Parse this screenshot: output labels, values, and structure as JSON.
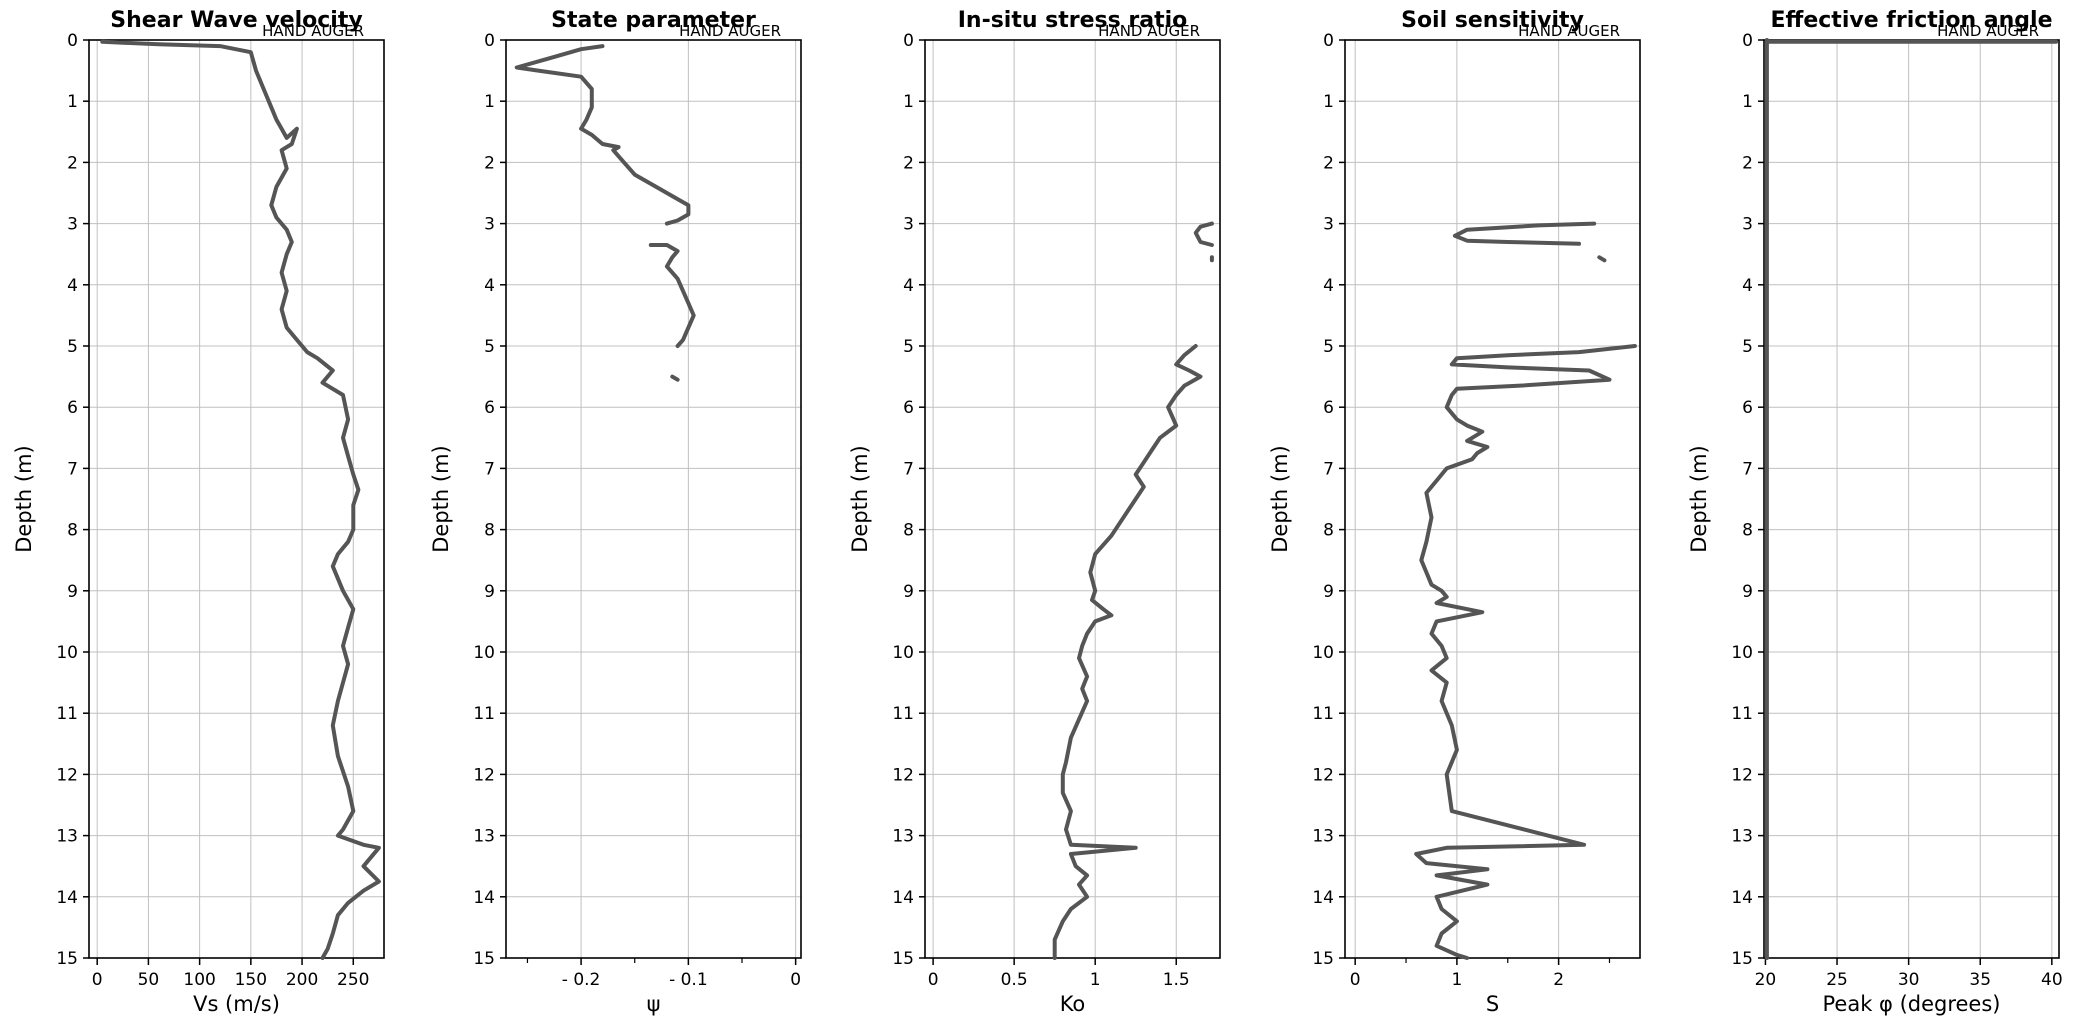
{
  "chart_data": [
    {
      "type": "line",
      "title": "Shear Wave velocity",
      "annotation": "HAND AUGER",
      "xlabel": "Vs (m/s)",
      "ylabel": "Depth (m)",
      "xlim": [
        -8,
        280
      ],
      "ylim": [
        15,
        0
      ],
      "xticks": [
        0,
        50,
        100,
        150,
        200,
        250
      ],
      "yticks": [
        0,
        1,
        2,
        3,
        4,
        5,
        6,
        7,
        8,
        9,
        10,
        11,
        12,
        13,
        14,
        15
      ],
      "grid": true,
      "segments": [
        {
          "x": [
            5,
            60,
            120,
            150,
            155,
            165,
            170,
            175,
            180,
            185,
            195,
            190,
            180,
            185,
            175,
            170,
            175,
            185,
            190,
            185,
            180,
            185,
            180,
            185,
            195,
            200,
            205,
            215,
            230,
            220,
            240,
            245,
            240,
            245,
            250,
            255,
            250,
            250,
            245,
            235,
            230,
            240,
            250,
            245,
            240,
            245,
            240,
            235,
            230,
            235,
            245,
            250,
            240,
            235,
            260,
            275,
            260,
            275,
            260,
            245,
            235,
            230,
            225,
            220
          ],
          "y": [
            0.03,
            0.07,
            0.1,
            0.2,
            0.5,
            0.9,
            1.1,
            1.3,
            1.45,
            1.6,
            1.45,
            1.7,
            1.8,
            2.1,
            2.4,
            2.7,
            2.9,
            3.1,
            3.3,
            3.5,
            3.8,
            4.1,
            4.4,
            4.7,
            4.9,
            5.0,
            5.1,
            5.2,
            5.4,
            5.6,
            5.8,
            6.2,
            6.5,
            6.8,
            7.1,
            7.35,
            7.6,
            8.0,
            8.2,
            8.4,
            8.6,
            9.0,
            9.3,
            9.6,
            9.9,
            10.2,
            10.5,
            10.8,
            11.2,
            11.7,
            12.2,
            12.6,
            12.9,
            13.0,
            13.15,
            13.2,
            13.5,
            13.75,
            13.9,
            14.1,
            14.3,
            14.6,
            14.85,
            15.0
          ]
        }
      ]
    },
    {
      "type": "line",
      "title": "State parameter",
      "annotation": "HAND AUGER",
      "xlabel": "ψ",
      "ylabel": "Depth (m)",
      "xlim": [
        -0.27,
        0.005
      ],
      "ylim": [
        15,
        0
      ],
      "xticks": [
        -0.2,
        -0.1,
        0
      ],
      "xticklabels": [
        "- 0.2",
        "- 0.1",
        "0"
      ],
      "minor_xticks": [
        -0.25,
        -0.15,
        -0.05
      ],
      "yticks": [
        0,
        1,
        2,
        3,
        4,
        5,
        6,
        7,
        8,
        9,
        10,
        11,
        12,
        13,
        14,
        15
      ],
      "grid": true,
      "segments": [
        {
          "x": [
            -0.18,
            -0.2,
            -0.23,
            -0.26,
            -0.24,
            -0.2,
            -0.19,
            -0.19,
            -0.195,
            -0.2,
            -0.19,
            -0.18,
            -0.165,
            -0.17,
            -0.16,
            -0.15,
            -0.13,
            -0.11,
            -0.1,
            -0.1,
            -0.11,
            -0.12
          ],
          "y": [
            0.1,
            0.15,
            0.3,
            0.45,
            0.5,
            0.6,
            0.8,
            1.1,
            1.3,
            1.45,
            1.55,
            1.7,
            1.75,
            1.8,
            2.0,
            2.2,
            2.4,
            2.6,
            2.7,
            2.85,
            2.95,
            3.0
          ]
        },
        {
          "x": [
            -0.135,
            -0.12,
            -0.11,
            -0.115,
            -0.12,
            -0.11,
            -0.105,
            -0.1,
            -0.095,
            -0.1,
            -0.105,
            -0.11
          ],
          "y": [
            3.35,
            3.35,
            3.45,
            3.55,
            3.7,
            3.9,
            4.1,
            4.3,
            4.5,
            4.7,
            4.9,
            5.0
          ]
        },
        {
          "x": [
            -0.115,
            -0.11
          ],
          "y": [
            5.5,
            5.55
          ]
        }
      ]
    },
    {
      "type": "line",
      "title": "In-situ stress ratio",
      "annotation": "HAND AUGER",
      "xlabel": "Ko",
      "ylabel": "Depth (m)",
      "xlim": [
        -0.05,
        1.77
      ],
      "ylim": [
        15,
        0
      ],
      "xticks": [
        0,
        0.5,
        1,
        1.5
      ],
      "yticks": [
        0,
        1,
        2,
        3,
        4,
        5,
        6,
        7,
        8,
        9,
        10,
        11,
        12,
        13,
        14,
        15
      ],
      "grid": true,
      "segments": [
        {
          "x": [
            1.72,
            1.65,
            1.62,
            1.65,
            1.72
          ],
          "y": [
            3.0,
            3.05,
            3.15,
            3.3,
            3.35
          ]
        },
        {
          "x": [
            1.72,
            1.72
          ],
          "y": [
            3.55,
            3.6
          ]
        },
        {
          "x": [
            1.62,
            1.55,
            1.5,
            1.58,
            1.65,
            1.55,
            1.5,
            1.45,
            1.5,
            1.4,
            1.35,
            1.3,
            1.25,
            1.3,
            1.2,
            1.1,
            1.0,
            0.97,
            1.0,
            0.98,
            1.05,
            1.1,
            1.0,
            0.95,
            0.92,
            0.9,
            0.95,
            0.92,
            0.95,
            0.9,
            0.85,
            0.82,
            0.8,
            0.8,
            0.85,
            0.82,
            0.85,
            1.25,
            0.85,
            0.88,
            0.95,
            0.9,
            0.95,
            0.85,
            0.8,
            0.75,
            0.75
          ],
          "y": [
            5.0,
            5.15,
            5.3,
            5.4,
            5.5,
            5.65,
            5.8,
            6.0,
            6.3,
            6.5,
            6.7,
            6.9,
            7.1,
            7.3,
            7.7,
            8.1,
            8.4,
            8.7,
            9.0,
            9.15,
            9.3,
            9.4,
            9.5,
            9.7,
            9.9,
            10.1,
            10.4,
            10.6,
            10.8,
            11.1,
            11.4,
            11.8,
            12.0,
            12.3,
            12.6,
            12.9,
            13.15,
            13.2,
            13.3,
            13.5,
            13.65,
            13.8,
            14.0,
            14.2,
            14.4,
            14.7,
            15.0
          ]
        }
      ]
    },
    {
      "type": "line",
      "title": "Soil sensitivity",
      "annotation": "HAND AUGER",
      "xlabel": "S",
      "ylabel": "Depth (m)",
      "xlim": [
        -0.1,
        2.8
      ],
      "ylim": [
        15,
        0
      ],
      "xticks": [
        0,
        1,
        2
      ],
      "minor_xticks": [
        0.5,
        1.5,
        2.5
      ],
      "yticks": [
        0,
        1,
        2,
        3,
        4,
        5,
        6,
        7,
        8,
        9,
        10,
        11,
        12,
        13,
        14,
        15
      ],
      "grid": true,
      "segments": [
        {
          "x": [
            2.35,
            1.8,
            1.1,
            0.98,
            1.1,
            1.5,
            2.2
          ],
          "y": [
            3.0,
            3.03,
            3.1,
            3.2,
            3.28,
            3.3,
            3.33
          ]
        },
        {
          "x": [
            2.4,
            2.45
          ],
          "y": [
            3.55,
            3.6
          ]
        },
        {
          "x": [
            2.75,
            2.2,
            1.5,
            1.0,
            0.95,
            1.5,
            2.3,
            2.5,
            1.6,
            1.0,
            0.95,
            0.9,
            0.95,
            1.0,
            1.1,
            1.25,
            1.1,
            1.3,
            1.2,
            1.15,
            0.9,
            0.8,
            0.7,
            0.75,
            0.7,
            0.65,
            0.7,
            0.75,
            0.85,
            0.9,
            0.8,
            1.25,
            0.8,
            0.75,
            0.85,
            0.9,
            0.75,
            0.9,
            0.85,
            0.95,
            1.0,
            0.9,
            0.95,
            2.25,
            0.9,
            0.6,
            0.7,
            1.3,
            0.8,
            1.3,
            0.8,
            0.85,
            1.0,
            0.85,
            0.8,
            1.0,
            1.1
          ],
          "y": [
            5.0,
            5.1,
            5.15,
            5.2,
            5.3,
            5.35,
            5.4,
            5.55,
            5.65,
            5.7,
            5.8,
            6.0,
            6.1,
            6.2,
            6.3,
            6.4,
            6.55,
            6.65,
            6.75,
            6.85,
            7.0,
            7.2,
            7.4,
            7.8,
            8.2,
            8.5,
            8.7,
            8.9,
            9.0,
            9.1,
            9.2,
            9.35,
            9.5,
            9.7,
            9.9,
            10.1,
            10.3,
            10.5,
            10.8,
            11.2,
            11.6,
            12.0,
            12.6,
            13.15,
            13.2,
            13.3,
            13.45,
            13.55,
            13.65,
            13.8,
            14.0,
            14.2,
            14.4,
            14.6,
            14.8,
            14.95,
            15.0
          ]
        }
      ]
    },
    {
      "type": "line",
      "title": "Effective friction angle",
      "annotation": "HAND AUGER",
      "xlabel": "Peak φ (degrees)",
      "ylabel": "Depth (m)",
      "xlim": [
        19.9,
        40.5
      ],
      "ylim": [
        15,
        0
      ],
      "xticks": [
        20,
        25,
        30,
        35,
        40
      ],
      "yticks": [
        0,
        1,
        2,
        3,
        4,
        5,
        6,
        7,
        8,
        9,
        10,
        11,
        12,
        13,
        14,
        15
      ],
      "grid": true,
      "segments": [
        {
          "x": [
            20.1,
            20.1
          ],
          "y": [
            0.0,
            15.0
          ]
        },
        {
          "x": [
            20.1,
            40.3
          ],
          "y": [
            0.03,
            0.03
          ]
        }
      ]
    }
  ]
}
